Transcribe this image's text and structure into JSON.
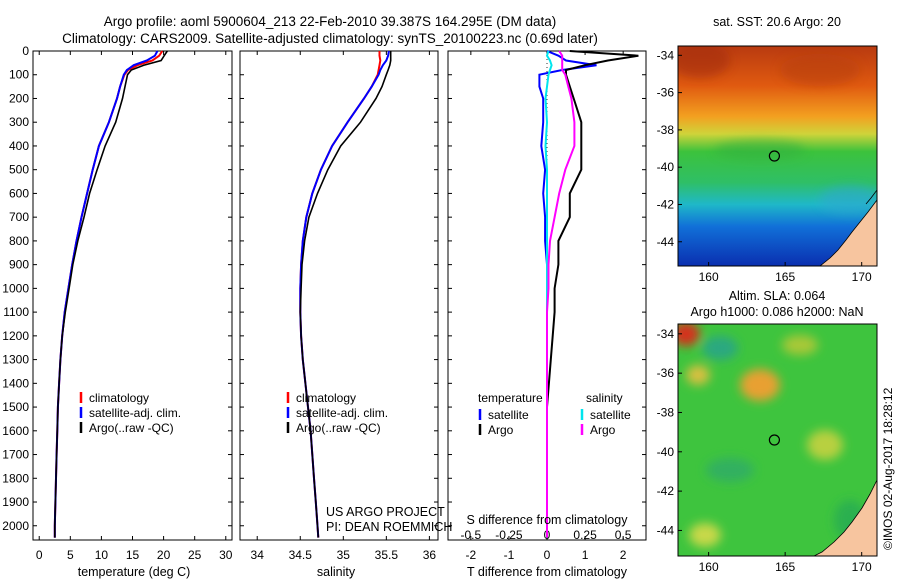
{
  "header": {
    "line1": "Argo profile: aoml 5900604_213 22-Feb-2010 39.387S 164.295E (DM data)",
    "line2": "Climatology: CARS2009. Satellite-adjusted climatology: synTS_20100223.nc (0.69d later)"
  },
  "colors": {
    "climatology": "#ff0000",
    "satellite": "#0000ff",
    "argo": "#000000",
    "salinity_satellite": "#00e5ee",
    "salinity_argo": "#ff00ff",
    "land": "#f7c59f"
  },
  "depth_axis": {
    "range": [
      0,
      2060
    ],
    "reversed": true,
    "ticks": [
      "0",
      "100",
      "200",
      "300",
      "400",
      "500",
      "600",
      "700",
      "800",
      "900",
      "1000",
      "1100",
      "1200",
      "1300",
      "1400",
      "1500",
      "1600",
      "1700",
      "1800",
      "1900",
      "2000"
    ]
  },
  "chart_data": [
    {
      "type": "line",
      "id": "temperature",
      "xlabel": "temperature (deg C)",
      "xlim": [
        -1,
        31
      ],
      "xticks": [
        "0",
        "5",
        "10",
        "15",
        "20",
        "25",
        "30"
      ],
      "legend": {
        "position": "lower-center",
        "entries": [
          "climatology",
          "satellite-adj. clim.",
          "Argo(..raw -QC)"
        ]
      },
      "depth": [
        0,
        20,
        40,
        60,
        80,
        100,
        150,
        200,
        300,
        400,
        500,
        600,
        700,
        800,
        900,
        1000,
        1100,
        1200,
        1300,
        1400,
        1500,
        1600,
        1700,
        1800,
        1900,
        2000,
        2050
      ],
      "series": [
        {
          "name": "climatology",
          "values": [
            19.8,
            19.3,
            18.2,
            15.8,
            14.3,
            13.7,
            13.0,
            12.5,
            11.2,
            9.6,
            8.6,
            7.7,
            6.8,
            6.0,
            5.3,
            4.7,
            4.1,
            3.7,
            3.4,
            3.2,
            3.0,
            2.9,
            2.8,
            2.7,
            2.6,
            2.5,
            2.5
          ]
        },
        {
          "name": "satellite-adj. clim.",
          "values": [
            19.0,
            18.6,
            17.3,
            15.2,
            14.1,
            13.6,
            13.0,
            12.5,
            11.2,
            9.6,
            8.6,
            7.7,
            6.8,
            6.0,
            5.3,
            4.7,
            4.1,
            3.7,
            3.4,
            3.2,
            3.0,
            2.9,
            2.8,
            2.7,
            2.6,
            2.5,
            2.5
          ]
        },
        {
          "name": "Argo(..raw -QC)",
          "values": [
            20.6,
            20.1,
            19.6,
            16.8,
            14.8,
            14.2,
            13.8,
            13.4,
            12.3,
            10.6,
            9.3,
            8.1,
            7.2,
            6.2,
            5.4,
            4.8,
            4.2,
            3.7,
            3.4,
            3.2,
            3.0,
            2.9,
            2.8,
            2.7,
            2.6,
            2.5,
            2.5
          ]
        }
      ]
    },
    {
      "type": "line",
      "id": "salinity",
      "xlabel": "salinity",
      "xlim": [
        33.8,
        36.1
      ],
      "xticks": [
        "34",
        "34.5",
        "35",
        "35.5",
        "36"
      ],
      "legend": {
        "position": "lower-center",
        "entries": [
          "climatology",
          "satellite-adj. clim.",
          "Argo(..raw -QC)"
        ]
      },
      "annotation": [
        "US ARGO PROJECT",
        "PI: DEAN ROEMMICH"
      ],
      "depth": [
        0,
        20,
        40,
        60,
        80,
        100,
        150,
        200,
        300,
        400,
        500,
        600,
        700,
        800,
        900,
        1000,
        1100,
        1200,
        1300,
        1400,
        1500,
        1600,
        1700,
        1800,
        1900,
        2000,
        2050
      ],
      "series": [
        {
          "name": "climatology",
          "values": [
            35.42,
            35.42,
            35.43,
            35.42,
            35.41,
            35.4,
            35.33,
            35.24,
            35.05,
            34.87,
            34.74,
            34.64,
            34.57,
            34.53,
            34.51,
            34.5,
            34.5,
            34.51,
            34.53,
            34.56,
            34.59,
            34.62,
            34.64,
            34.66,
            34.68,
            34.7,
            34.71
          ]
        },
        {
          "name": "satellite-adj. clim.",
          "values": [
            35.53,
            35.52,
            35.5,
            35.46,
            35.43,
            35.41,
            35.33,
            35.24,
            35.05,
            34.87,
            34.74,
            34.64,
            34.57,
            34.53,
            34.51,
            34.5,
            34.5,
            34.51,
            34.53,
            34.56,
            34.59,
            34.62,
            34.64,
            34.66,
            34.68,
            34.7,
            34.71
          ]
        },
        {
          "name": "Argo(..raw -QC)",
          "values": [
            35.55,
            35.55,
            35.55,
            35.54,
            35.52,
            35.5,
            35.45,
            35.38,
            35.2,
            34.97,
            34.82,
            34.7,
            34.6,
            34.55,
            34.52,
            34.51,
            34.5,
            34.51,
            34.53,
            34.56,
            34.59,
            34.62,
            34.64,
            34.66,
            34.68,
            34.7,
            34.71
          ]
        }
      ]
    },
    {
      "type": "line",
      "id": "difference",
      "xlabel": "T difference from climatology",
      "xlabel_top": "S difference from climatology",
      "xlim": [
        -2.6,
        2.6
      ],
      "xticks": [
        "-2",
        "-1",
        "0",
        "1",
        "2"
      ],
      "xticks_top": [
        "-0.5",
        "-0.25",
        "0",
        "0.25",
        "0.5"
      ],
      "legend": {
        "position": "lower-center",
        "groups": [
          "temperature",
          "salinity"
        ],
        "entries": [
          "satellite",
          "Argo",
          "satellite",
          "Argo"
        ]
      },
      "depth": [
        0,
        20,
        40,
        60,
        80,
        100,
        150,
        200,
        300,
        400,
        500,
        600,
        700,
        800,
        900,
        1000,
        1100,
        1200,
        1300,
        1400,
        1500,
        1600,
        1700,
        1800,
        1900,
        2000,
        2050
      ],
      "series": [
        {
          "name": "temperature satellite",
          "values": [
            0.0,
            0.3,
            0.5,
            1.3,
            0.4,
            -0.2,
            -0.2,
            -0.1,
            -0.1,
            -0.15,
            -0.05,
            -0.1,
            -0.05,
            -0.05,
            0,
            0,
            0,
            0,
            0,
            0,
            0,
            0,
            0,
            0,
            0,
            0,
            0
          ]
        },
        {
          "name": "temperature Argo",
          "values": [
            0.6,
            2.4,
            1.6,
            1.0,
            0.5,
            0.5,
            0.6,
            0.7,
            0.9,
            0.9,
            0.9,
            0.6,
            0.6,
            0.3,
            0.3,
            0.2,
            0.2,
            0.15,
            0.1,
            0.05,
            0,
            0,
            0,
            0,
            0,
            0,
            0
          ]
        },
        {
          "name": "salinity satellite",
          "values": [
            0.01,
            0.0,
            0.02,
            0.03,
            0.02,
            0.01,
            0.0,
            -0.01,
            0.0,
            -0.01,
            0.0,
            0.0,
            0.0,
            0.0,
            0.0,
            0.0,
            0.0,
            0.0,
            0.0,
            0.0,
            0.0,
            0.0,
            0.0,
            0.0,
            0.0,
            0.0,
            0.0
          ]
        },
        {
          "name": "salinity Argo",
          "values": [
            0.08,
            0.1,
            0.1,
            0.1,
            0.1,
            0.12,
            0.14,
            0.16,
            0.18,
            0.18,
            0.12,
            0.08,
            0.05,
            0.02,
            0.01,
            0.01,
            0.0,
            0.0,
            0.0,
            0.0,
            0.0,
            0.0,
            0.0,
            0.0,
            0.0,
            0.0,
            0.0
          ]
        }
      ]
    }
  ],
  "maps": [
    {
      "id": "sst-map",
      "title": "sat. SST: 20.6 Argo: 20",
      "xticks": [
        "160",
        "165",
        "170"
      ],
      "yticks": [
        "-34",
        "-36",
        "-38",
        "-40",
        "-42",
        "-44"
      ],
      "xlim": [
        158,
        171
      ],
      "ylim": [
        -45.3,
        -33.5
      ],
      "marker": {
        "lon": 164.3,
        "lat": -39.4
      }
    },
    {
      "id": "sla-map",
      "title_line1": "Altim. SLA: 0.064",
      "title_line2": "Argo h1000: 0.086 h2000: NaN",
      "xticks": [
        "160",
        "165",
        "170"
      ],
      "yticks": [
        "-34",
        "-36",
        "-38",
        "-40",
        "-42",
        "-44"
      ],
      "xlim": [
        158,
        171
      ],
      "ylim": [
        -45.3,
        -33.5
      ],
      "marker": {
        "lon": 164.3,
        "lat": -39.4
      }
    }
  ],
  "footer": {
    "credit": "©IMOS 02-Aug-2017 18:28:12"
  }
}
